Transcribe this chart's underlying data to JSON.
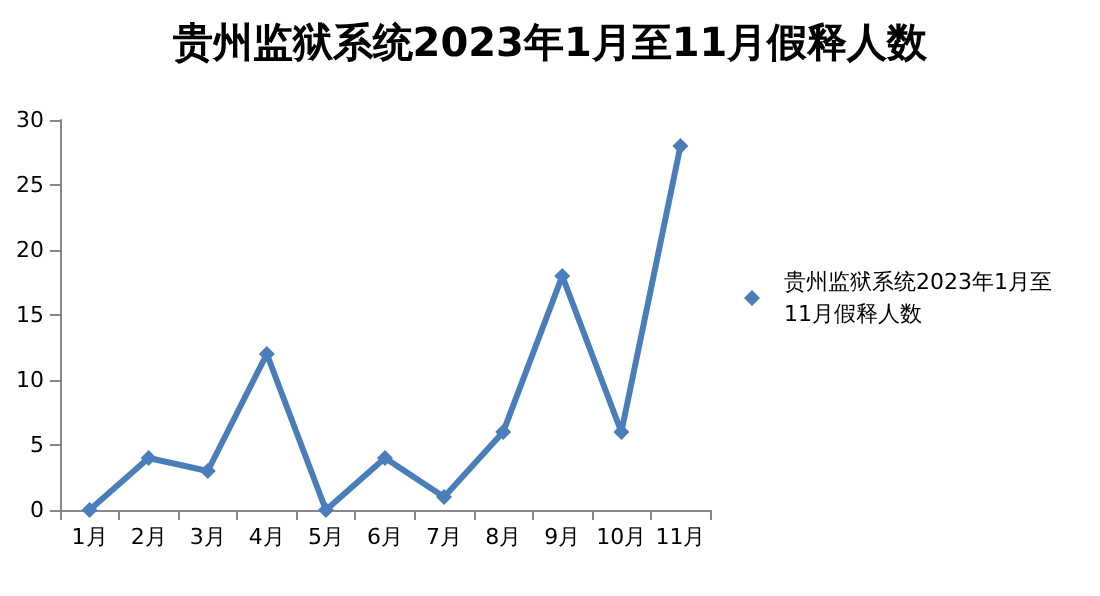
{
  "chart_data": {
    "type": "line",
    "title": "贵州监狱系统2023年1月至11月假释人数",
    "categories": [
      "1月",
      "2月",
      "3月",
      "4月",
      "5月",
      "6月",
      "7月",
      "8月",
      "9月",
      "10月",
      "11月"
    ],
    "series": [
      {
        "name": "贵州监狱系统2023年1月至11月假释人数",
        "color": "#4a7ebb",
        "values": [
          0,
          4,
          3,
          12,
          0,
          4,
          1,
          6,
          18,
          6,
          28
        ]
      }
    ],
    "ylim": [
      0,
      30
    ],
    "yticks": [
      0,
      5,
      10,
      15,
      20,
      25,
      30
    ],
    "grid": false,
    "legend": "right",
    "marker": "diamond",
    "line_style": "solid"
  }
}
